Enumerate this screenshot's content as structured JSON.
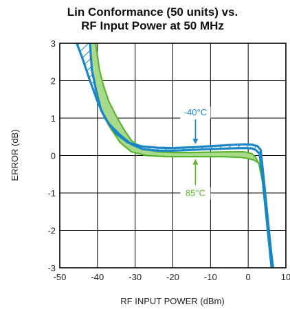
{
  "chart_data": {
    "type": "line",
    "title_line1": "Lin Conformance (50 units) vs.",
    "title_line2": "RF Input Power at 50 MHz",
    "xlabel": "RF INPUT POWER (dBm)",
    "ylabel": "ERROR (dB)",
    "xlim": [
      -50,
      10
    ],
    "ylim": [
      -3,
      3
    ],
    "x_ticks": [
      "-50",
      "-40",
      "-30",
      "-20",
      "-10",
      "0",
      "10"
    ],
    "y_ticks": [
      "-3",
      "-2",
      "-1",
      "0",
      "1",
      "2",
      "3"
    ],
    "grid": true,
    "colors": {
      "cold": "#1a86c4",
      "hot": "#5cb531",
      "hot_fill": "#a9d98a"
    },
    "series": [
      {
        "name": "-40°C",
        "role": "cold",
        "upper": [
          [
            -45.5,
            3
          ],
          [
            -44,
            2.6
          ],
          [
            -42,
            2.0
          ],
          [
            -40,
            1.45
          ],
          [
            -38,
            1.0
          ],
          [
            -35,
            0.58
          ],
          [
            -32,
            0.35
          ],
          [
            -28,
            0.24
          ],
          [
            -24,
            0.21
          ],
          [
            -20,
            0.2
          ],
          [
            -15,
            0.22
          ],
          [
            -10,
            0.25
          ],
          [
            -5,
            0.28
          ],
          [
            -1,
            0.3
          ],
          [
            1,
            0.29
          ],
          [
            2.5,
            0.25
          ],
          [
            3.3,
            0.15
          ],
          [
            4,
            -0.5
          ],
          [
            5,
            -1.5
          ],
          [
            6,
            -2.5
          ],
          [
            6.6,
            -3
          ]
        ],
        "lower": [
          [
            -42,
            3
          ],
          [
            -41.5,
            2.3
          ],
          [
            -40.5,
            1.8
          ],
          [
            -39,
            1.2
          ],
          [
            -37,
            0.85
          ],
          [
            -34,
            0.55
          ],
          [
            -31,
            0.3
          ],
          [
            -28,
            0.17
          ],
          [
            -24,
            0.13
          ],
          [
            -20,
            0.13
          ],
          [
            -15,
            0.15
          ],
          [
            -10,
            0.17
          ],
          [
            -5,
            0.19
          ],
          [
            -1,
            0.2
          ],
          [
            1,
            0.19
          ],
          [
            2,
            0.15
          ],
          [
            3,
            0.05
          ],
          [
            3.8,
            -0.6
          ],
          [
            4.8,
            -1.6
          ],
          [
            5.8,
            -2.6
          ],
          [
            6.2,
            -3
          ]
        ]
      },
      {
        "name": "85°C",
        "role": "hot",
        "upper": [
          [
            -40.5,
            3
          ],
          [
            -39.5,
            2.3
          ],
          [
            -38.5,
            1.9
          ],
          [
            -37,
            1.45
          ],
          [
            -35,
            1.05
          ],
          [
            -33,
            0.7
          ],
          [
            -31,
            0.4
          ],
          [
            -28,
            0.18
          ],
          [
            -24,
            0.1
          ],
          [
            -20,
            0.08
          ],
          [
            -15,
            0.08
          ],
          [
            -10,
            0.09
          ],
          [
            -5,
            0.1
          ],
          [
            -1,
            0.1
          ],
          [
            1,
            0.05
          ],
          [
            2,
            -0.05
          ],
          [
            3,
            -0.25
          ],
          [
            4,
            -0.6
          ],
          [
            5,
            -1.6
          ],
          [
            6,
            -2.6
          ],
          [
            6.5,
            -3
          ]
        ],
        "lower": [
          [
            -43.5,
            3
          ],
          [
            -42.5,
            2.4
          ],
          [
            -41.5,
            2.0
          ],
          [
            -39.5,
            1.3
          ],
          [
            -37,
            0.8
          ],
          [
            -34,
            0.35
          ],
          [
            -31,
            0.1
          ],
          [
            -27,
            0.0
          ],
          [
            -22,
            -0.03
          ],
          [
            -17,
            -0.03
          ],
          [
            -12,
            -0.03
          ],
          [
            -7,
            -0.03
          ],
          [
            -2,
            -0.05
          ],
          [
            0,
            -0.08
          ],
          [
            1.5,
            -0.12
          ],
          [
            2.8,
            -0.2
          ],
          [
            3.8,
            -0.7
          ],
          [
            4.8,
            -1.7
          ],
          [
            5.8,
            -2.7
          ],
          [
            6.2,
            -3
          ]
        ]
      }
    ],
    "annotations": [
      {
        "text": "-40°C",
        "arrow_to": [
          -14,
          0.23
        ],
        "role": "cold"
      },
      {
        "text": "85°C",
        "arrow_to": [
          -14,
          -0.02
        ],
        "role": "hot"
      }
    ]
  }
}
